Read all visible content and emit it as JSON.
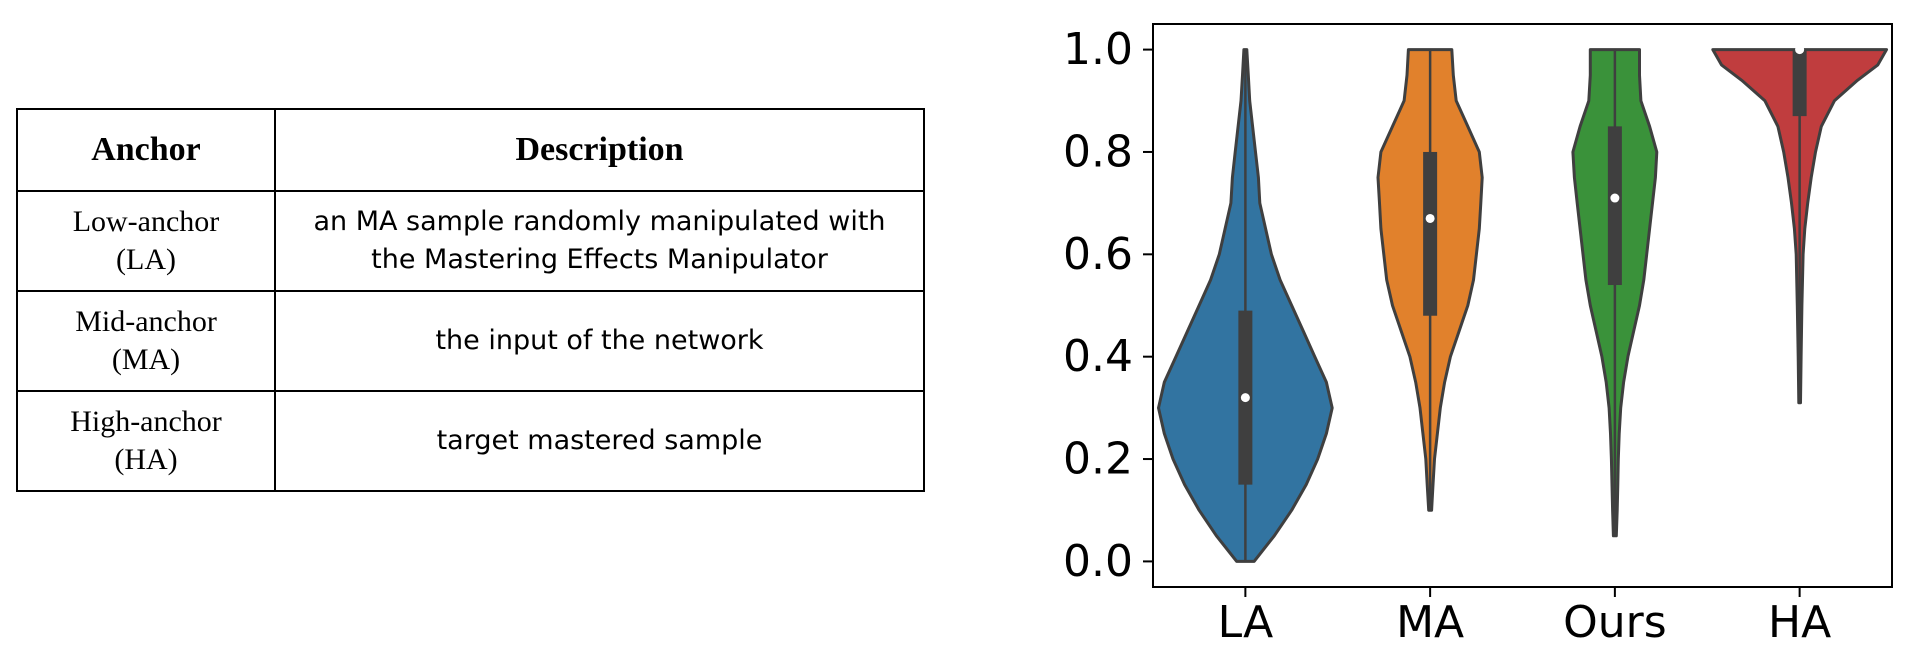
{
  "table": {
    "headers": [
      "Anchor",
      "Description"
    ],
    "rows": [
      {
        "anchor_line1": "Low-anchor",
        "anchor_line2": "(LA)",
        "description_line1": "an MA sample randomly manipulated with",
        "description_line2": "the Mastering Effects Manipulator"
      },
      {
        "anchor_line1": "Mid-anchor",
        "anchor_line2": "(MA)",
        "description_line1": "the input of the network",
        "description_line2": ""
      },
      {
        "anchor_line1": "High-anchor",
        "anchor_line2": "(HA)",
        "description_line1": "target mastered sample",
        "description_line2": ""
      }
    ]
  },
  "chart_data": {
    "type": "violin",
    "categories": [
      "LA",
      "MA",
      "Ours",
      "HA"
    ],
    "colors": [
      "#3274a1",
      "#e1812c",
      "#3a923a",
      "#c03d3e"
    ],
    "ylim": [
      -0.05,
      1.05
    ],
    "yticks": [
      0.0,
      0.2,
      0.4,
      0.6,
      0.8,
      1.0
    ],
    "ytick_labels": [
      "0.0",
      "0.2",
      "0.4",
      "0.6",
      "0.8",
      "1.0"
    ],
    "grid": false,
    "series": [
      {
        "category": "LA",
        "min": 0.0,
        "q1": 0.15,
        "median": 0.32,
        "q3": 0.49,
        "max": 1.0,
        "density": [
          [
            0.0,
            0.03
          ],
          [
            0.05,
            0.1
          ],
          [
            0.1,
            0.16
          ],
          [
            0.15,
            0.21
          ],
          [
            0.2,
            0.25
          ],
          [
            0.25,
            0.28
          ],
          [
            0.3,
            0.3
          ],
          [
            0.35,
            0.28
          ],
          [
            0.4,
            0.24
          ],
          [
            0.45,
            0.2
          ],
          [
            0.5,
            0.16
          ],
          [
            0.55,
            0.12
          ],
          [
            0.6,
            0.09
          ],
          [
            0.65,
            0.07
          ],
          [
            0.7,
            0.05
          ],
          [
            0.75,
            0.045
          ],
          [
            0.8,
            0.035
          ],
          [
            0.85,
            0.025
          ],
          [
            0.9,
            0.015
          ],
          [
            0.95,
            0.01
          ],
          [
            1.0,
            0.005
          ]
        ]
      },
      {
        "category": "MA",
        "min": 0.1,
        "q1": 0.48,
        "median": 0.67,
        "q3": 0.8,
        "max": 1.0,
        "density": [
          [
            0.1,
            0.005
          ],
          [
            0.15,
            0.01
          ],
          [
            0.2,
            0.015
          ],
          [
            0.25,
            0.025
          ],
          [
            0.3,
            0.035
          ],
          [
            0.35,
            0.05
          ],
          [
            0.4,
            0.07
          ],
          [
            0.45,
            0.1
          ],
          [
            0.5,
            0.13
          ],
          [
            0.55,
            0.15
          ],
          [
            0.6,
            0.16
          ],
          [
            0.65,
            0.17
          ],
          [
            0.7,
            0.175
          ],
          [
            0.75,
            0.18
          ],
          [
            0.8,
            0.17
          ],
          [
            0.85,
            0.13
          ],
          [
            0.9,
            0.09
          ],
          [
            0.95,
            0.08
          ],
          [
            1.0,
            0.075
          ]
        ]
      },
      {
        "category": "Ours",
        "min": 0.05,
        "q1": 0.54,
        "median": 0.71,
        "q3": 0.85,
        "max": 1.0,
        "density": [
          [
            0.05,
            0.005
          ],
          [
            0.1,
            0.008
          ],
          [
            0.15,
            0.01
          ],
          [
            0.2,
            0.012
          ],
          [
            0.25,
            0.015
          ],
          [
            0.3,
            0.02
          ],
          [
            0.35,
            0.03
          ],
          [
            0.4,
            0.045
          ],
          [
            0.45,
            0.065
          ],
          [
            0.5,
            0.085
          ],
          [
            0.55,
            0.1
          ],
          [
            0.6,
            0.11
          ],
          [
            0.65,
            0.12
          ],
          [
            0.7,
            0.13
          ],
          [
            0.75,
            0.14
          ],
          [
            0.8,
            0.145
          ],
          [
            0.85,
            0.12
          ],
          [
            0.9,
            0.09
          ],
          [
            0.95,
            0.085
          ],
          [
            1.0,
            0.085
          ]
        ]
      },
      {
        "category": "HA",
        "min": 0.31,
        "q1": 0.87,
        "median": 1.0,
        "q3": 1.0,
        "max": 1.0,
        "density": [
          [
            0.31,
            0.003
          ],
          [
            0.4,
            0.005
          ],
          [
            0.5,
            0.008
          ],
          [
            0.6,
            0.012
          ],
          [
            0.65,
            0.018
          ],
          [
            0.7,
            0.028
          ],
          [
            0.75,
            0.04
          ],
          [
            0.8,
            0.055
          ],
          [
            0.85,
            0.075
          ],
          [
            0.9,
            0.12
          ],
          [
            0.94,
            0.2
          ],
          [
            0.97,
            0.27
          ],
          [
            1.0,
            0.3
          ]
        ]
      }
    ]
  }
}
